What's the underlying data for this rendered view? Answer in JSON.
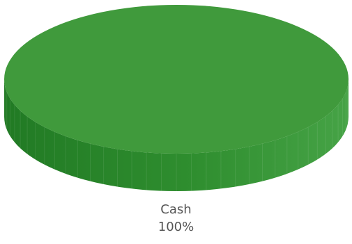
{
  "chart_data": {
    "type": "pie",
    "style": "3d",
    "slices": [
      {
        "label": "Cash",
        "value": 100,
        "display_value": "100%",
        "color": "#409a3c",
        "side_color": "#2d8a2d"
      }
    ],
    "title": "",
    "legend": false
  }
}
